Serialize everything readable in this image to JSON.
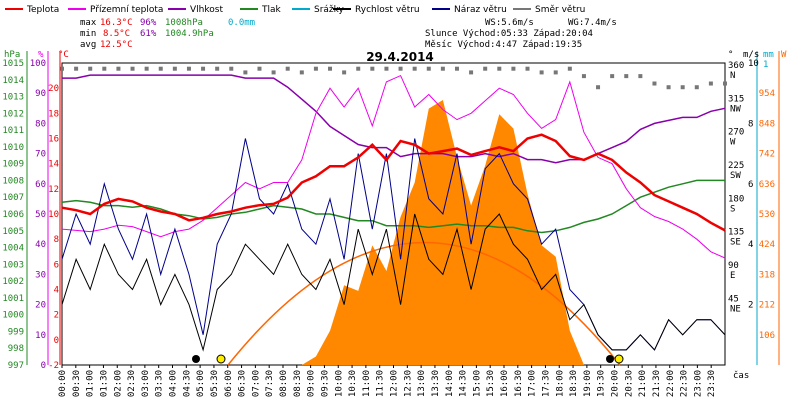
{
  "legend": [
    {
      "label": "Teplota",
      "color": "#ee0000"
    },
    {
      "label": "Přízemní teplota",
      "color": "#ee00ee"
    },
    {
      "label": "Vlhkost",
      "color": "#8800aa"
    },
    {
      "label": "Tlak",
      "color": "#228822"
    },
    {
      "label": "Srážky",
      "color": "#00aacc"
    },
    {
      "label": "Rychlost větru",
      "color": "#000000"
    },
    {
      "label": "Náraz větru",
      "color": "#000088"
    },
    {
      "label": "Směr větru",
      "color": "#777777"
    }
  ],
  "stats": {
    "max_label": "max",
    "max_temp": "16.3°C",
    "max_hum": "96%",
    "max_press": "1008hPa",
    "max_rain": "0.0mm",
    "min_label": "min",
    "min_temp": "8.5°C",
    "min_hum": "61%",
    "min_press": "1004.9hPa",
    "avg_label": "avg",
    "avg_temp": "12.5°C",
    "ws": "WS:5.6m/s",
    "wg": "WG:7.4m/s",
    "sun": "Slunce Východ:05:33  Západ:20:04",
    "moon": "Měsíc  Východ:4:47  Západ:19:35"
  },
  "colors": {
    "temp": "#ee0000",
    "ground": "#ee00ee",
    "hum": "#8800aa",
    "press": "#228822",
    "rain": "#00aacc",
    "wind": "#000000",
    "gust": "#000088",
    "dir": "#777777",
    "sun": "#ff6600",
    "radiation": "#ff8800"
  },
  "chart_data": {
    "type": "line",
    "title": "29.4.2014",
    "x_unit": "čas",
    "x_ticks": [
      "00:00",
      "00:30",
      "01:00",
      "01:30",
      "02:00",
      "02:30",
      "03:00",
      "03:30",
      "04:00",
      "04:30",
      "05:00",
      "05:30",
      "06:00",
      "06:30",
      "07:00",
      "07:30",
      "08:00",
      "08:30",
      "09:00",
      "09:30",
      "10:00",
      "10:30",
      "11:00",
      "11:30",
      "12:00",
      "12:30",
      "13:00",
      "13:30",
      "14:00",
      "14:30",
      "15:00",
      "15:30",
      "16:00",
      "16:30",
      "17:00",
      "17:30",
      "18:00",
      "18:30",
      "19:00",
      "19:30",
      "20:00",
      "20:30",
      "21:00",
      "21:30",
      "22:00",
      "22:30",
      "23:00",
      "23:30"
    ],
    "axes": {
      "hpa": {
        "label": "hPa",
        "min": 997,
        "max": 1015,
        "ticks": [
          "1015",
          "1014",
          "1013",
          "1012",
          "1011",
          "1010",
          "1009",
          "1008",
          "1007",
          "1006",
          "1005",
          "1004",
          "1003",
          "1002",
          "1001",
          "1000",
          "999",
          "998",
          "997"
        ]
      },
      "pct": {
        "label": "%",
        "min": 0,
        "max": 100,
        "ticks": [
          "100",
          "90",
          "80",
          "70",
          "60",
          "50",
          "40",
          "30",
          "20",
          "10",
          "0"
        ]
      },
      "temp": {
        "label": "°C",
        "min": -2,
        "max": 22,
        "ticks": [
          "20",
          "18",
          "16",
          "14",
          "12",
          "10",
          "8",
          "6",
          "4",
          "2",
          "0",
          "-2"
        ]
      },
      "dir": {
        "label": "°",
        "ticks": [
          "360",
          "315",
          "270",
          "225",
          "180",
          "135",
          "90",
          "45"
        ],
        "names": [
          "N",
          "NW",
          "W",
          "SW",
          "S",
          "SE",
          "E",
          "NE"
        ]
      },
      "wind": {
        "label": "m/s",
        "min": 0,
        "max": 10,
        "ticks": [
          "10",
          "8",
          "6",
          "4",
          "2"
        ]
      },
      "rain": {
        "label": "mm",
        "ticks": [
          "1",
          "0"
        ]
      },
      "rad": {
        "label": "W",
        "min": 0,
        "max": 1060,
        "ticks": [
          "954",
          "848",
          "742",
          "636",
          "530",
          "424",
          "318",
          "212",
          "106"
        ]
      }
    },
    "series": [
      {
        "name": "Teplota",
        "values": [
          10.5,
          10.3,
          10.0,
          10.8,
          11.2,
          11.0,
          10.5,
          10.2,
          10.0,
          9.5,
          9.7,
          10.0,
          10.2,
          10.5,
          10.7,
          10.8,
          11.3,
          12.5,
          13.0,
          13.8,
          13.8,
          14.5,
          15.5,
          14.3,
          15.8,
          15.5,
          14.8,
          15.0,
          15.2,
          14.7,
          15.0,
          15.3,
          15.0,
          16.0,
          16.3,
          15.8,
          14.6,
          14.3,
          14.8,
          14.3,
          13.3,
          12.5,
          11.5,
          11.0,
          10.5,
          10.0,
          9.3,
          8.7
        ]
      },
      {
        "name": "Přízemní teplota",
        "values": [
          8.8,
          8.7,
          8.6,
          8.8,
          9.1,
          9.0,
          8.6,
          8.2,
          8.6,
          8.8,
          9.5,
          10.5,
          11.5,
          12.5,
          12.0,
          12.5,
          12.5,
          14.3,
          18.0,
          20.0,
          18.5,
          20.0,
          17.0,
          20.5,
          21.0,
          18.5,
          19.5,
          18.3,
          17.5,
          18.0,
          19.0,
          20.0,
          19.5,
          18.0,
          16.8,
          17.5,
          20.5,
          16.5,
          14.5,
          14.0,
          12.0,
          10.5,
          9.8,
          9.4,
          8.8,
          8.0,
          7.0,
          6.5
        ]
      },
      {
        "name": "Vlhkost",
        "values": [
          95,
          95,
          96,
          96,
          96,
          96,
          96,
          96,
          96,
          96,
          96,
          96,
          96,
          95,
          95,
          95,
          92,
          88,
          84,
          79,
          76,
          73,
          72,
          72,
          69,
          70,
          70,
          70,
          69,
          69,
          70,
          69,
          70,
          68,
          68,
          67,
          68,
          68,
          70,
          72,
          74,
          78,
          80,
          81,
          82,
          82,
          84,
          85
        ]
      },
      {
        "name": "Tlak",
        "values": [
          1006.7,
          1006.8,
          1006.7,
          1006.5,
          1006.5,
          1006.4,
          1006.5,
          1006.3,
          1006.0,
          1005.9,
          1005.7,
          1005.8,
          1006.0,
          1006.1,
          1006.3,
          1006.5,
          1006.4,
          1006.3,
          1006.0,
          1006.0,
          1005.8,
          1005.6,
          1005.6,
          1005.3,
          1005.3,
          1005.3,
          1005.2,
          1005.3,
          1005.4,
          1005.3,
          1005.3,
          1005.2,
          1005.2,
          1005.0,
          1004.9,
          1005.0,
          1005.2,
          1005.5,
          1005.7,
          1006.0,
          1006.5,
          1007.0,
          1007.3,
          1007.6,
          1007.8,
          1008.0,
          1008.0,
          1008.0
        ]
      },
      {
        "name": "Rychlost větru",
        "values": [
          2.0,
          3.5,
          2.5,
          4.0,
          3.0,
          2.5,
          3.5,
          2.0,
          3.0,
          2.0,
          0.5,
          2.5,
          3.0,
          4.0,
          3.5,
          3.0,
          4.0,
          3.0,
          2.5,
          3.5,
          2.0,
          4.5,
          3.0,
          4.5,
          2.0,
          5.0,
          3.5,
          3.0,
          4.5,
          2.5,
          4.5,
          5.0,
          4.0,
          3.5,
          2.5,
          3.0,
          1.5,
          2.0,
          1.0,
          0.5,
          0.5,
          1.0,
          0.5,
          1.5,
          1.0,
          1.5,
          1.5,
          1.0
        ]
      },
      {
        "name": "Náraz větru",
        "values": [
          3.5,
          5.0,
          4.0,
          6.0,
          4.5,
          3.5,
          5.0,
          3.0,
          4.5,
          3.0,
          1.0,
          4.0,
          5.0,
          7.5,
          5.5,
          5.0,
          6.0,
          4.5,
          4.0,
          5.5,
          3.5,
          7.0,
          4.5,
          7.0,
          3.5,
          7.5,
          5.5,
          5.0,
          7.0,
          4.0,
          6.5,
          7.0,
          6.0,
          5.5,
          4.0,
          4.5,
          2.5,
          2.0,
          1.0,
          0.5,
          0.5,
          1.0,
          0.5,
          1.5,
          1.0,
          1.5,
          1.5,
          1.0
        ]
      },
      {
        "name": "Směr větru",
        "values": [
          355,
          355,
          355,
          355,
          355,
          355,
          355,
          355,
          355,
          355,
          355,
          355,
          355,
          350,
          355,
          350,
          355,
          350,
          355,
          355,
          350,
          355,
          355,
          355,
          355,
          355,
          355,
          355,
          355,
          350,
          355,
          355,
          355,
          355,
          350,
          350,
          355,
          345,
          330,
          345,
          345,
          345,
          335,
          330,
          330,
          330,
          335,
          335
        ]
      },
      {
        "name": "Záření",
        "values": [
          0,
          0,
          0,
          0,
          0,
          0,
          0,
          0,
          0,
          0,
          0,
          0,
          0,
          0,
          0,
          0,
          0,
          0,
          30,
          120,
          280,
          260,
          420,
          330,
          520,
          640,
          900,
          930,
          730,
          560,
          700,
          880,
          830,
          600,
          420,
          380,
          120,
          0,
          0,
          0,
          0,
          0,
          0,
          0,
          0,
          0,
          0,
          0
        ]
      }
    ]
  }
}
